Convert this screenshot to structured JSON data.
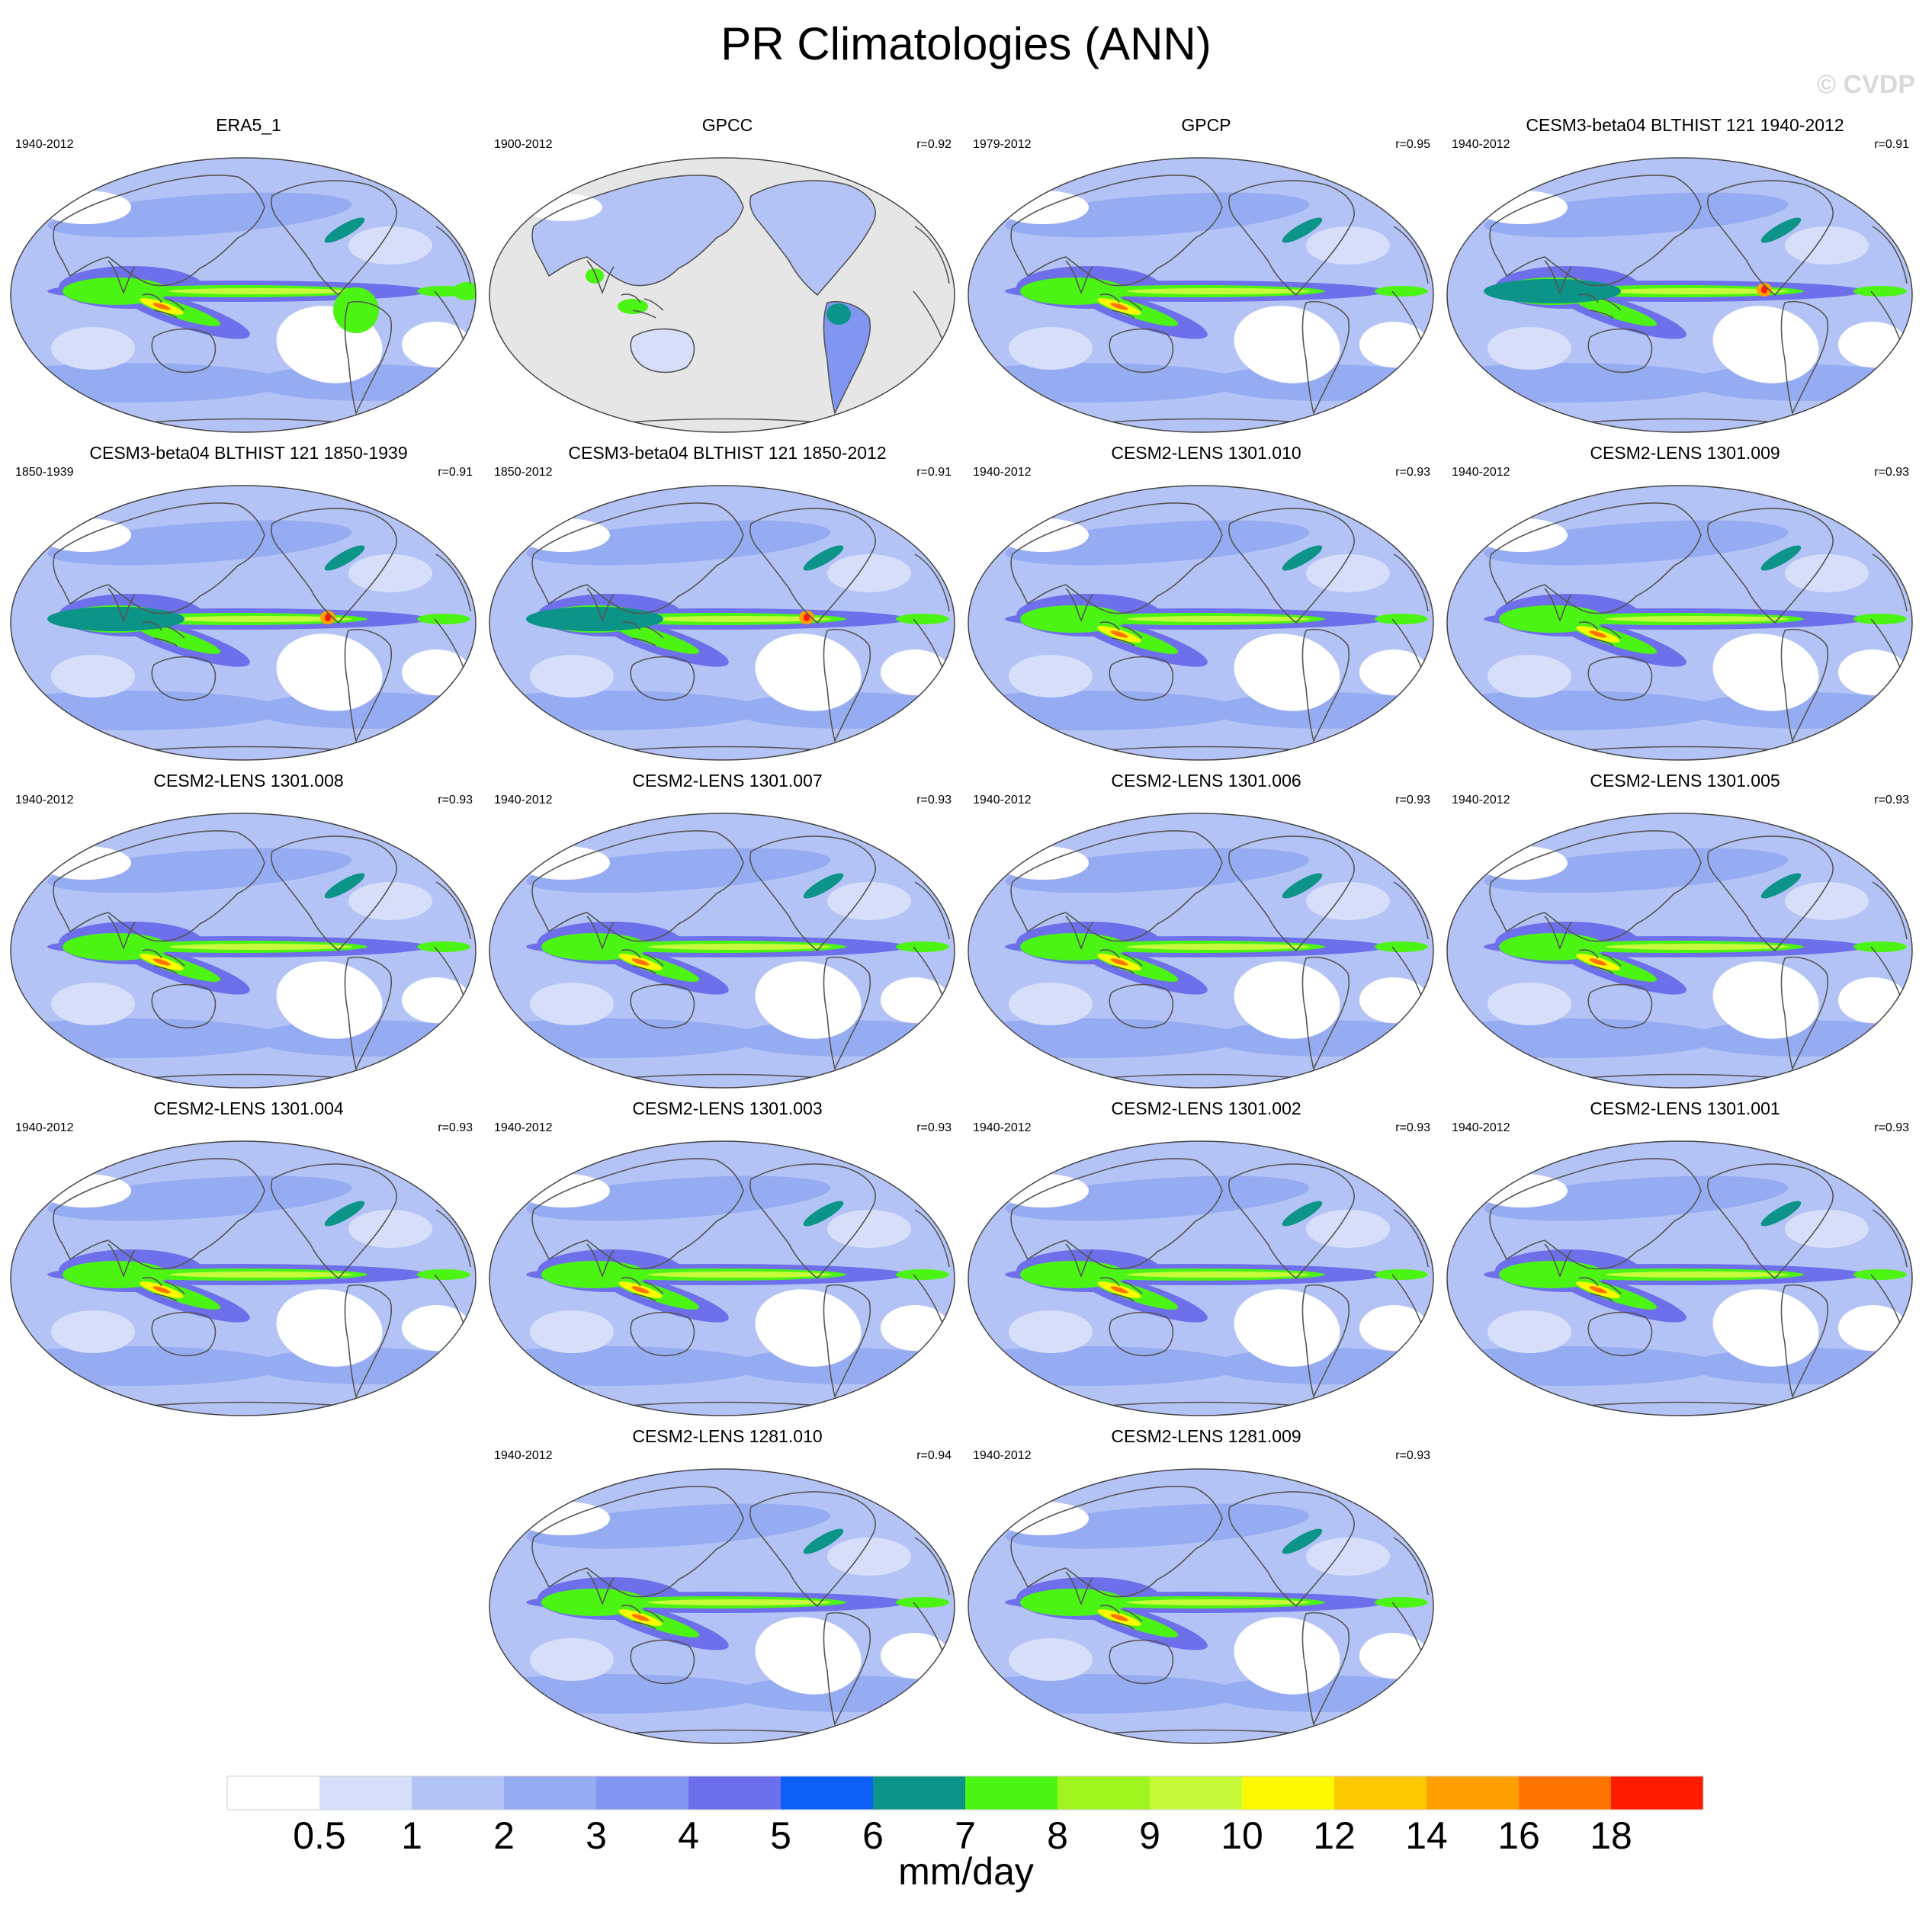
{
  "title": "PR Climatologies (ANN)",
  "watermark": "© CVDP",
  "panels": [
    {
      "name": "ERA5_1",
      "period": "1940-2012",
      "corr": "",
      "style": "era5"
    },
    {
      "name": "GPCC",
      "period": "1900-2012",
      "corr": "r=0.92",
      "style": "gpcc"
    },
    {
      "name": "GPCP",
      "period": "1979-2012",
      "corr": "r=0.95",
      "style": "obs"
    },
    {
      "name": "CESM3-beta04 BLTHIST 121 1940-2012",
      "period": "1940-2012",
      "corr": "r=0.91",
      "style": "cesm3"
    },
    {
      "name": "CESM3-beta04 BLTHIST 121 1850-1939",
      "period": "1850-1939",
      "corr": "r=0.91",
      "style": "cesm3"
    },
    {
      "name": "CESM3-beta04 BLTHIST 121 1850-2012",
      "period": "1850-2012",
      "corr": "r=0.91",
      "style": "cesm3"
    },
    {
      "name": "CESM2-LENS 1301.010",
      "period": "1940-2012",
      "corr": "r=0.93",
      "style": "model"
    },
    {
      "name": "CESM2-LENS 1301.009",
      "period": "1940-2012",
      "corr": "r=0.93",
      "style": "model"
    },
    {
      "name": "CESM2-LENS 1301.008",
      "period": "1940-2012",
      "corr": "r=0.93",
      "style": "model"
    },
    {
      "name": "CESM2-LENS 1301.007",
      "period": "1940-2012",
      "corr": "r=0.93",
      "style": "model"
    },
    {
      "name": "CESM2-LENS 1301.006",
      "period": "1940-2012",
      "corr": "r=0.93",
      "style": "model"
    },
    {
      "name": "CESM2-LENS 1301.005",
      "period": "1940-2012",
      "corr": "r=0.93",
      "style": "model"
    },
    {
      "name": "CESM2-LENS 1301.004",
      "period": "1940-2012",
      "corr": "r=0.93",
      "style": "model"
    },
    {
      "name": "CESM2-LENS 1301.003",
      "period": "1940-2012",
      "corr": "r=0.93",
      "style": "model"
    },
    {
      "name": "CESM2-LENS 1301.002",
      "period": "1940-2012",
      "corr": "r=0.93",
      "style": "model"
    },
    {
      "name": "CESM2-LENS 1301.001",
      "period": "1940-2012",
      "corr": "r=0.93",
      "style": "model"
    },
    {
      "name": "CESM2-LENS 1281.010",
      "period": "1940-2012",
      "corr": "r=0.94",
      "style": "model"
    },
    {
      "name": "CESM2-LENS 1281.009",
      "period": "1940-2012",
      "corr": "r=0.93",
      "style": "model"
    }
  ],
  "colorbar": {
    "unit": "mm/day",
    "tick_labels": [
      "0.5",
      "1",
      "2",
      "3",
      "4",
      "5",
      "6",
      "7",
      "8",
      "9",
      "10",
      "12",
      "14",
      "16",
      "18"
    ],
    "colors": [
      "#ffffff",
      "#d6defa",
      "#b4c3f5",
      "#96acf2",
      "#8196f0",
      "#6d70ea",
      "#0c60f8",
      "#0b9487",
      "#4cf414",
      "#a0f51e",
      "#c8fa3c",
      "#fcfa00",
      "#fcc800",
      "#ffa000",
      "#ff7400",
      "#ff1b00"
    ]
  },
  "colors": {
    "missing": "#e6e6e6",
    "coast": "#555555"
  }
}
